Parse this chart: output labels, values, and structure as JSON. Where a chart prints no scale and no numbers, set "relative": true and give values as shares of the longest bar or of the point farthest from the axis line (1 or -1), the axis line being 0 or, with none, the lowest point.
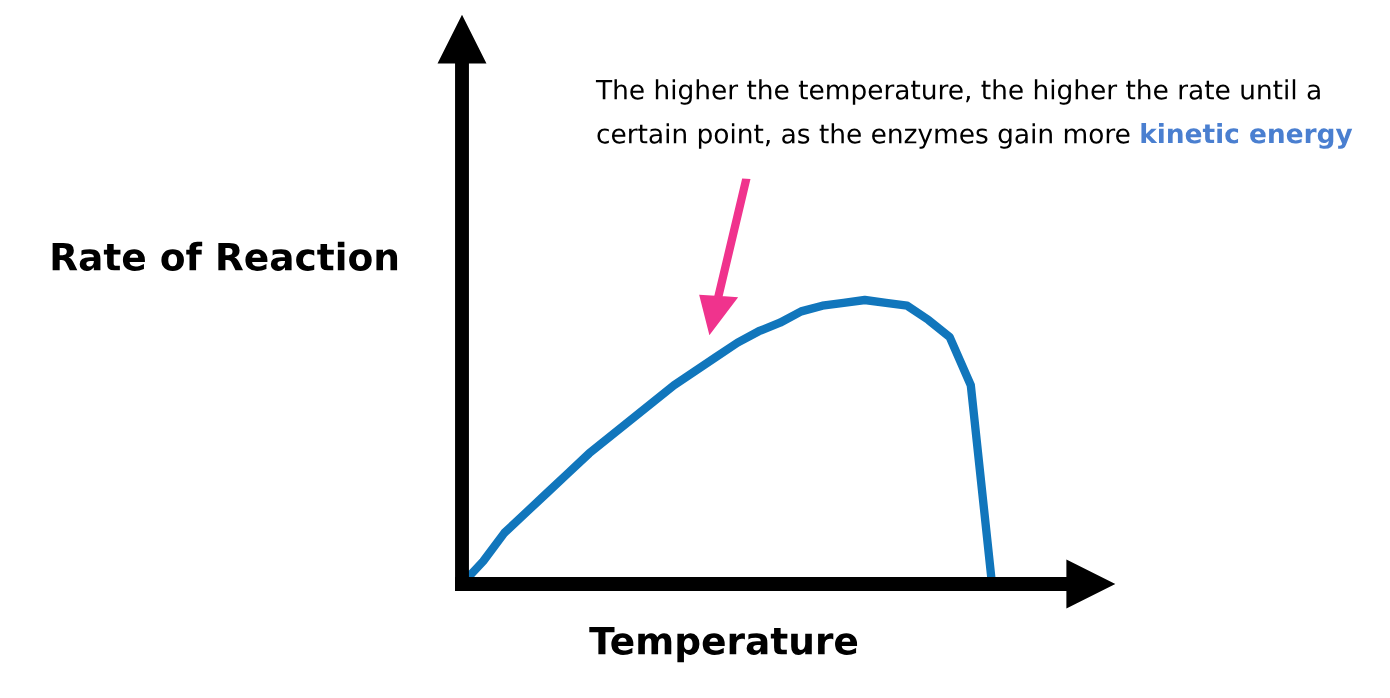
{
  "chart_data": {
    "type": "line",
    "relative": true,
    "xlabel": "Temperature",
    "ylabel": "Rate of Reaction",
    "categories": [
      null,
      null,
      null,
      null,
      null,
      null,
      null,
      null,
      null,
      null,
      null,
      null,
      null,
      null,
      null,
      null,
      null,
      null,
      null,
      null,
      null,
      null,
      null,
      null,
      null,
      null
    ],
    "series": [
      {
        "color": "#1176bc",
        "values": [
          0,
          0.08,
          0.18,
          0.25,
          0.32,
          0.39,
          0.46,
          0.52,
          0.58,
          0.64,
          0.7,
          0.75,
          0.8,
          0.85,
          0.89,
          0.92,
          0.96,
          0.98,
          0.99,
          1,
          0.99,
          0.98,
          0.93,
          0.87,
          0.7,
          0
        ]
      }
    ],
    "annotations": [
      "The higher the temperature, the higher the rate until a\ncertain point, as the enzymes gain more ",
      "kinetic energy"
    ],
    "tick_labels": false,
    "legend": false,
    "marker": "none",
    "line_style": "solid"
  }
}
